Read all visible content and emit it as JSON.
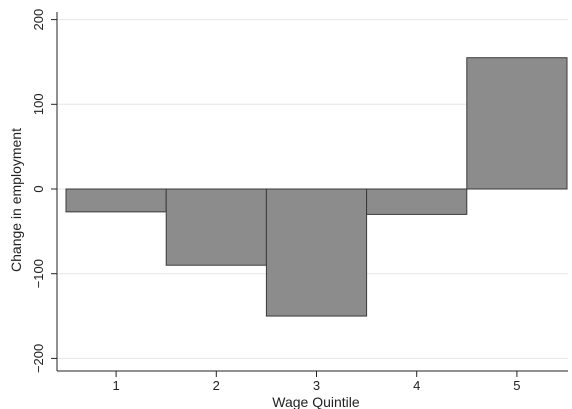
{
  "chart_data": {
    "type": "bar",
    "categories": [
      "1",
      "2",
      "3",
      "4",
      "5"
    ],
    "values": [
      -27,
      -90,
      -150,
      -30,
      155
    ],
    "xlabel": "Wage Quintile",
    "ylabel": "Change in employment",
    "ylim": [
      -210,
      210
    ],
    "yticks": [
      -200,
      -100,
      0,
      100,
      200
    ],
    "ytick_labels": [
      "−200",
      "−100",
      "0",
      "100",
      "200"
    ],
    "grid": true,
    "colors": {
      "bar_fill": "#8c8c8c",
      "bar_stroke": "#3a3a3a",
      "axis": "#222222",
      "grid": "#e6e6e6"
    }
  }
}
